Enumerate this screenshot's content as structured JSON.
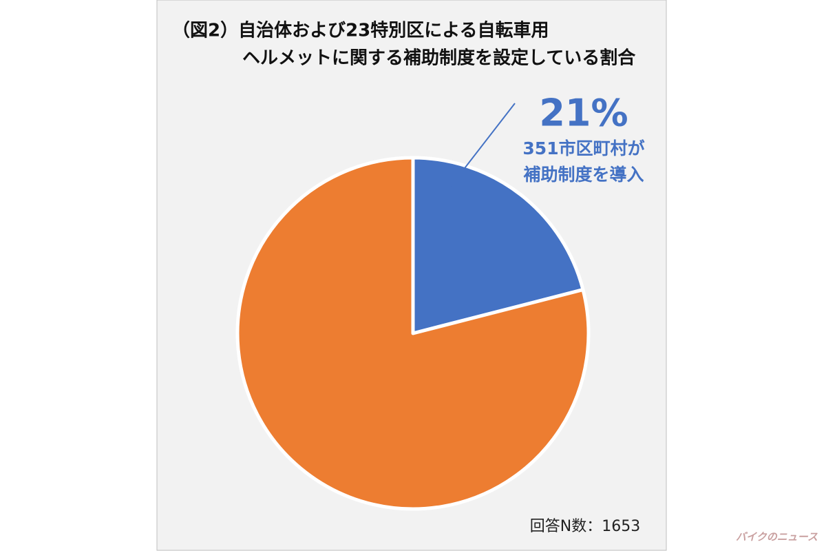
{
  "chart_data": {
    "type": "pie",
    "title": [
      "（図2）自治体および23特別区による自転車用",
      "ヘルメットに関する補助制度を設定している割合"
    ],
    "values": [
      21,
      79
    ],
    "value_labels": [
      "21%",
      null
    ],
    "colors": [
      "#4472c4",
      "#ed7d31"
    ],
    "annotations": [
      "351市区町村が",
      "補助制度を導入"
    ],
    "note": "回答N数：1653"
  },
  "watermark": "バイクのニュース"
}
